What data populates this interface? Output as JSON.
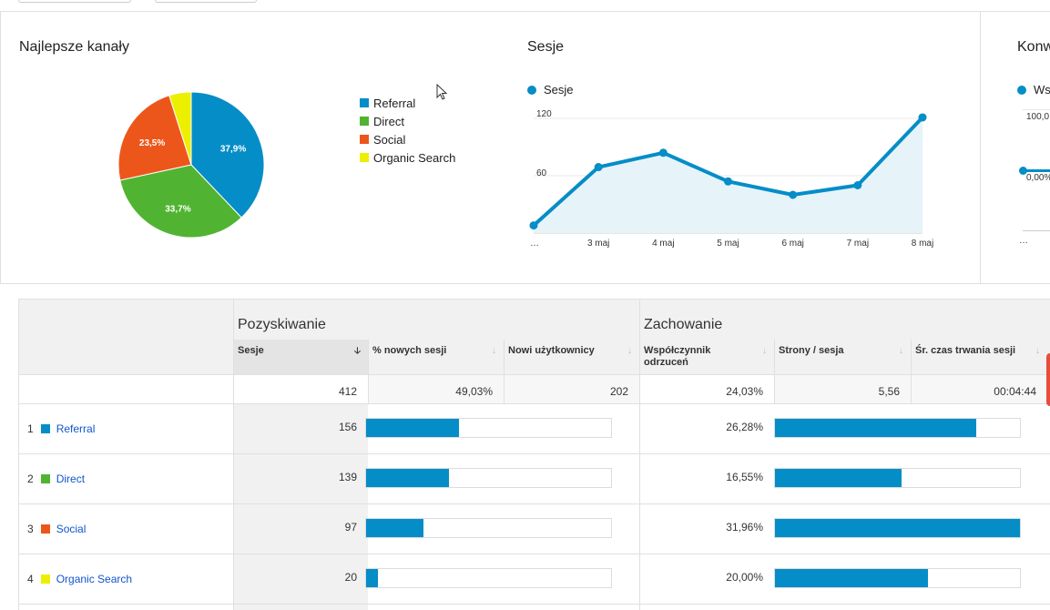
{
  "colors": {
    "accent": "#058dc7",
    "referral": "#058dc7",
    "direct": "#50b432",
    "social": "#ed561b",
    "organic": "#edef00",
    "link": "#1155cc"
  },
  "channels_card": {
    "title": "Najlepsze kanały",
    "legend": [
      "Referral",
      "Direct",
      "Social",
      "Organic Search"
    ],
    "pie": [
      {
        "name": "Referral",
        "value": 37.9,
        "label": "37,9%",
        "color": "#058dc7"
      },
      {
        "name": "Direct",
        "value": 33.7,
        "label": "33,7%",
        "color": "#50b432"
      },
      {
        "name": "Social",
        "value": 23.5,
        "label": "23,5%",
        "color": "#ed561b"
      },
      {
        "name": "Organic Search",
        "value": 4.9,
        "label": "",
        "color": "#edef00"
      }
    ]
  },
  "sessions_card": {
    "title": "Sesje",
    "legend": "Sesje",
    "y_ticks": [
      "120",
      "60"
    ],
    "x_labels": [
      "…",
      "3 maj",
      "4 maj",
      "5 maj",
      "6 maj",
      "7 maj",
      "8 maj"
    ]
  },
  "chart_data": {
    "type": "line",
    "x": [
      "…",
      "3 maj",
      "4 maj",
      "5 maj",
      "6 maj",
      "7 maj",
      "8 maj"
    ],
    "series": [
      {
        "name": "Sesje",
        "values": [
          8,
          69,
          84,
          54,
          40,
          50,
          121
        ]
      }
    ],
    "ylim": [
      0,
      120
    ]
  },
  "conv_card": {
    "title": "Konw",
    "legend": "Ws",
    "y_ticks": [
      "100,0",
      "0,00%"
    ],
    "x_label": "…"
  },
  "table": {
    "groups": [
      "Pozyskiwanie",
      "Zachowanie"
    ],
    "headers": [
      "Sesje",
      "% nowych sesji",
      "Nowi użytkownicy",
      "Współczynnik odrzuceń",
      "Strony / sesja",
      "Śr. czas trwania sesji"
    ],
    "totals": [
      "412",
      "49,03%",
      "202",
      "24,03%",
      "5,56",
      "00:04:44"
    ],
    "rows": [
      {
        "index": "1",
        "name": "Referral",
        "color": "#058dc7",
        "sessions": "156",
        "bounce": "26,28%",
        "sessions_frac": 0.379,
        "bounce_frac": 0.822
      },
      {
        "index": "2",
        "name": "Direct",
        "color": "#50b432",
        "sessions": "139",
        "bounce": "16,55%",
        "sessions_frac": 0.338,
        "bounce_frac": 0.518
      },
      {
        "index": "3",
        "name": "Social",
        "color": "#ed561b",
        "sessions": "97",
        "bounce": "31,96%",
        "sessions_frac": 0.236,
        "bounce_frac": 1.0
      },
      {
        "index": "4",
        "name": "Organic Search",
        "color": "#edef00",
        "sessions": "20",
        "bounce": "20,00%",
        "sessions_frac": 0.049,
        "bounce_frac": 0.626
      }
    ]
  }
}
